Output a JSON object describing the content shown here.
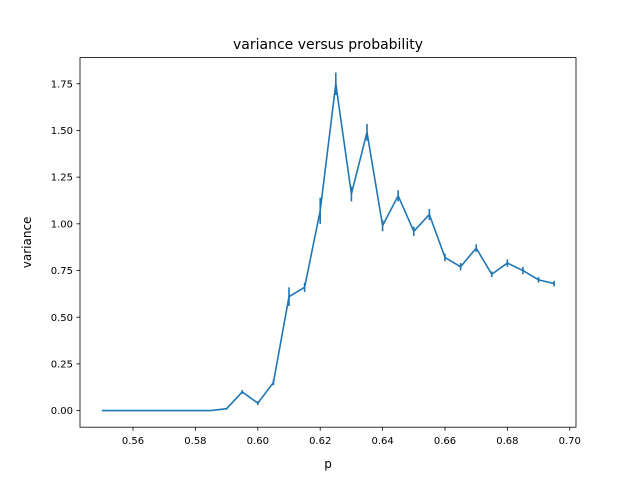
{
  "chart_data": {
    "type": "line",
    "title": "variance versus probability",
    "xlabel": "p",
    "ylabel": "variance",
    "xlim": [
      0.543,
      0.702
    ],
    "ylim": [
      -0.089,
      1.89
    ],
    "x_ticks": [
      0.56,
      0.58,
      0.6,
      0.62,
      0.64,
      0.66,
      0.68,
      0.7
    ],
    "x_tick_labels": [
      "0.56",
      "0.58",
      "0.60",
      "0.62",
      "0.64",
      "0.66",
      "0.68",
      "0.70"
    ],
    "y_ticks": [
      0.0,
      0.25,
      0.5,
      0.75,
      1.0,
      1.25,
      1.5,
      1.75
    ],
    "y_tick_labels": [
      "0.00",
      "0.25",
      "0.50",
      "0.75",
      "1.00",
      "1.25",
      "1.50",
      "1.75"
    ],
    "grid": false,
    "color": "#1f77b4",
    "series": [
      {
        "x": [
          0.55,
          0.555,
          0.56,
          0.565,
          0.57,
          0.575,
          0.58,
          0.585,
          0.59,
          0.595,
          0.6,
          0.605,
          0.61,
          0.615,
          0.62,
          0.625,
          0.63,
          0.635,
          0.64,
          0.645,
          0.65,
          0.655,
          0.66,
          0.665,
          0.67,
          0.675,
          0.68,
          0.685,
          0.69,
          0.695
        ],
        "y": [
          0.0,
          0.0,
          0.0,
          0.0,
          0.0,
          0.0,
          0.0,
          0.0,
          0.01,
          0.1,
          0.04,
          0.15,
          0.61,
          0.66,
          1.07,
          1.75,
          1.16,
          1.49,
          0.99,
          1.15,
          0.96,
          1.05,
          0.82,
          0.77,
          0.87,
          0.73,
          0.79,
          0.75,
          0.7,
          0.68
        ],
        "err": [
          0.0,
          0.0,
          0.0,
          0.0,
          0.0,
          0.0,
          0.0,
          0.0,
          0.005,
          0.01,
          0.01,
          0.015,
          0.05,
          0.025,
          0.07,
          0.06,
          0.04,
          0.045,
          0.03,
          0.03,
          0.025,
          0.03,
          0.02,
          0.02,
          0.02,
          0.015,
          0.02,
          0.02,
          0.015,
          0.015
        ]
      }
    ]
  }
}
